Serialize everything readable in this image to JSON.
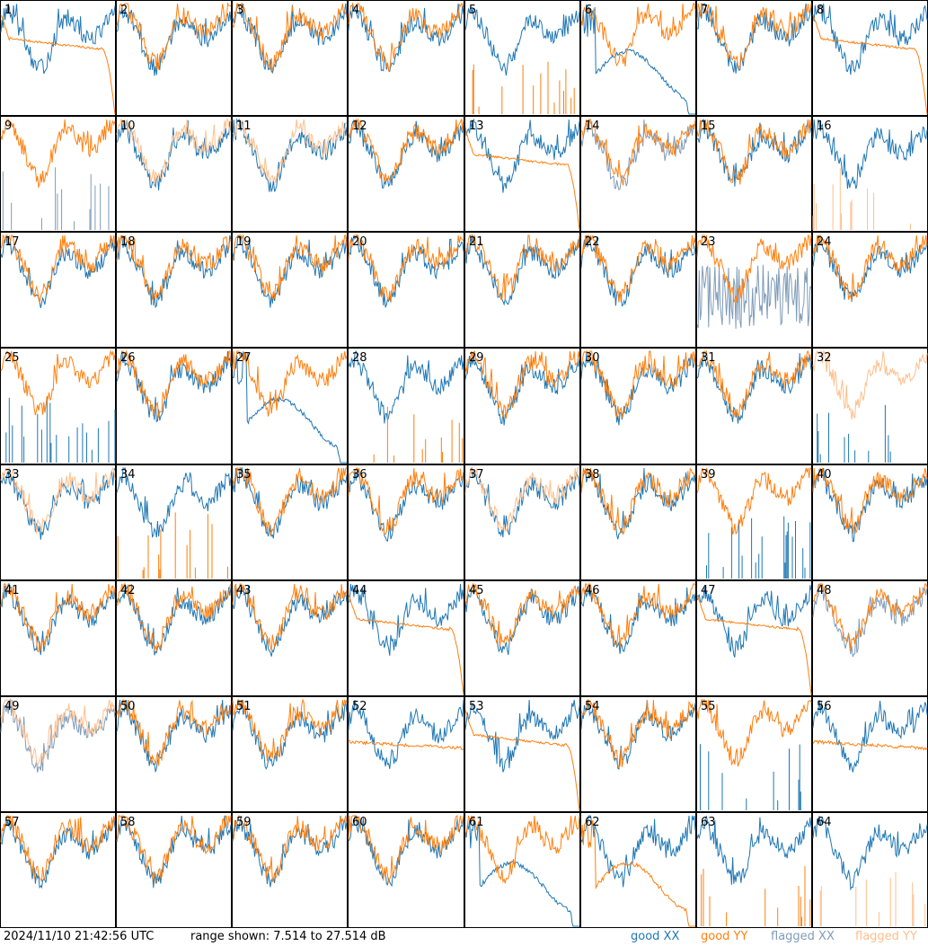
{
  "footer": {
    "timestamp": "2024/11/10 21:42:56 UTC",
    "range": "range shown: 7.514 to 27.514 dB"
  },
  "legend": [
    {
      "label": "good XX",
      "color": "#1f77b4"
    },
    {
      "label": "good YY",
      "color": "#ff7f0e"
    },
    {
      "label": "flagged XX",
      "color": "#7f9bb8"
    },
    {
      "label": "flagged YY",
      "color": "#ffbf8c"
    }
  ],
  "chart_data": {
    "type": "line",
    "layout": "8x8 small multiples",
    "ylim": [
      7.514,
      27.514
    ],
    "yunit": "dB",
    "panels": [
      {
        "label": "1",
        "xx": "good",
        "yy": "good",
        "yy_shape": "flat_dropoff"
      },
      {
        "label": "2",
        "xx": "good",
        "yy": "good",
        "yy_shape": "normal"
      },
      {
        "label": "3",
        "xx": "good",
        "yy": "good",
        "yy_shape": "normal"
      },
      {
        "label": "4",
        "xx": "good",
        "yy": "good",
        "yy_shape": "normal"
      },
      {
        "label": "5",
        "xx": "good",
        "yy": "good",
        "yy_shape": "spikes"
      },
      {
        "label": "6",
        "xx": "good",
        "yy": "good",
        "xx_shape": "dip"
      },
      {
        "label": "7",
        "xx": "good",
        "yy": "good",
        "yy_shape": "normal"
      },
      {
        "label": "8",
        "xx": "good",
        "yy": "good",
        "yy_shape": "flat_dropoff"
      },
      {
        "label": "9",
        "xx": "flagged",
        "yy": "good",
        "xx_shape": "spikes"
      },
      {
        "label": "10",
        "xx": "good",
        "yy": "flagged"
      },
      {
        "label": "11",
        "xx": "good",
        "yy": "flagged"
      },
      {
        "label": "12",
        "xx": "good",
        "yy": "good"
      },
      {
        "label": "13",
        "xx": "good",
        "yy": "good",
        "yy_shape": "flat_dropoff"
      },
      {
        "label": "14",
        "xx": "flagged",
        "yy": "good"
      },
      {
        "label": "15",
        "xx": "good",
        "yy": "good"
      },
      {
        "label": "16",
        "xx": "good",
        "yy": "flagged",
        "yy_shape": "spikes"
      },
      {
        "label": "17",
        "xx": "good",
        "yy": "good"
      },
      {
        "label": "18",
        "xx": "good",
        "yy": "good"
      },
      {
        "label": "19",
        "xx": "good",
        "yy": "good"
      },
      {
        "label": "20",
        "xx": "good",
        "yy": "good"
      },
      {
        "label": "21",
        "xx": "good",
        "yy": "good"
      },
      {
        "label": "22",
        "xx": "good",
        "yy": "good"
      },
      {
        "label": "23",
        "xx": "flagged",
        "yy": "good",
        "xx_shape": "noisy_low"
      },
      {
        "label": "24",
        "xx": "good",
        "yy": "good"
      },
      {
        "label": "25",
        "xx": "good",
        "yy": "good",
        "xx_shape": "spikes"
      },
      {
        "label": "26",
        "xx": "good",
        "yy": "good"
      },
      {
        "label": "27",
        "xx": "good",
        "yy": "good",
        "xx_shape": "dip"
      },
      {
        "label": "28",
        "xx": "good",
        "yy": "good",
        "yy_shape": "spikes"
      },
      {
        "label": "29",
        "xx": "good",
        "yy": "good"
      },
      {
        "label": "30",
        "xx": "good",
        "yy": "good"
      },
      {
        "label": "31",
        "xx": "good",
        "yy": "good"
      },
      {
        "label": "32",
        "xx": "good",
        "yy": "flagged",
        "xx_shape": "spikes"
      },
      {
        "label": "33",
        "xx": "good",
        "yy": "flagged"
      },
      {
        "label": "34",
        "xx": "good",
        "yy": "good",
        "yy_shape": "spikes"
      },
      {
        "label": "35",
        "xx": "good",
        "yy": "good"
      },
      {
        "label": "36",
        "xx": "good",
        "yy": "good"
      },
      {
        "label": "37",
        "xx": "good",
        "yy": "flagged"
      },
      {
        "label": "38",
        "xx": "good",
        "yy": "good"
      },
      {
        "label": "39",
        "xx": "good",
        "yy": "good",
        "xx_shape": "spikes"
      },
      {
        "label": "40",
        "xx": "good",
        "yy": "good"
      },
      {
        "label": "41",
        "xx": "good",
        "yy": "good"
      },
      {
        "label": "42",
        "xx": "good",
        "yy": "good"
      },
      {
        "label": "43",
        "xx": "good",
        "yy": "good"
      },
      {
        "label": "44",
        "xx": "good",
        "yy": "good",
        "yy_shape": "flat_dropoff"
      },
      {
        "label": "45",
        "xx": "good",
        "yy": "good"
      },
      {
        "label": "46",
        "xx": "good",
        "yy": "good"
      },
      {
        "label": "47",
        "xx": "good",
        "yy": "good",
        "yy_shape": "flat_dropoff"
      },
      {
        "label": "48",
        "xx": "flagged",
        "yy": "good"
      },
      {
        "label": "49",
        "xx": "flagged",
        "yy": "flagged"
      },
      {
        "label": "50",
        "xx": "good",
        "yy": "good"
      },
      {
        "label": "51",
        "xx": "good",
        "yy": "good"
      },
      {
        "label": "52",
        "xx": "good",
        "yy": "good",
        "yy_shape": "flat"
      },
      {
        "label": "53",
        "xx": "good",
        "yy": "good",
        "yy_shape": "flat_dropoff"
      },
      {
        "label": "54",
        "xx": "good",
        "yy": "good"
      },
      {
        "label": "55",
        "xx": "good",
        "yy": "good",
        "xx_shape": "spikes"
      },
      {
        "label": "56",
        "xx": "good",
        "yy": "good",
        "yy_shape": "flat"
      },
      {
        "label": "57",
        "xx": "good",
        "yy": "good"
      },
      {
        "label": "58",
        "xx": "good",
        "yy": "good"
      },
      {
        "label": "59",
        "xx": "good",
        "yy": "good"
      },
      {
        "label": "60",
        "xx": "good",
        "yy": "good"
      },
      {
        "label": "61",
        "xx": "good",
        "yy": "good",
        "xx_shape": "dip"
      },
      {
        "label": "62",
        "xx": "good",
        "yy": "good",
        "yy_shape": "dip"
      },
      {
        "label": "63",
        "xx": "good",
        "yy": "good",
        "yy_shape": "spikes"
      },
      {
        "label": "64",
        "xx": "good",
        "yy": "flagged",
        "yy_shape": "spikes"
      }
    ]
  }
}
